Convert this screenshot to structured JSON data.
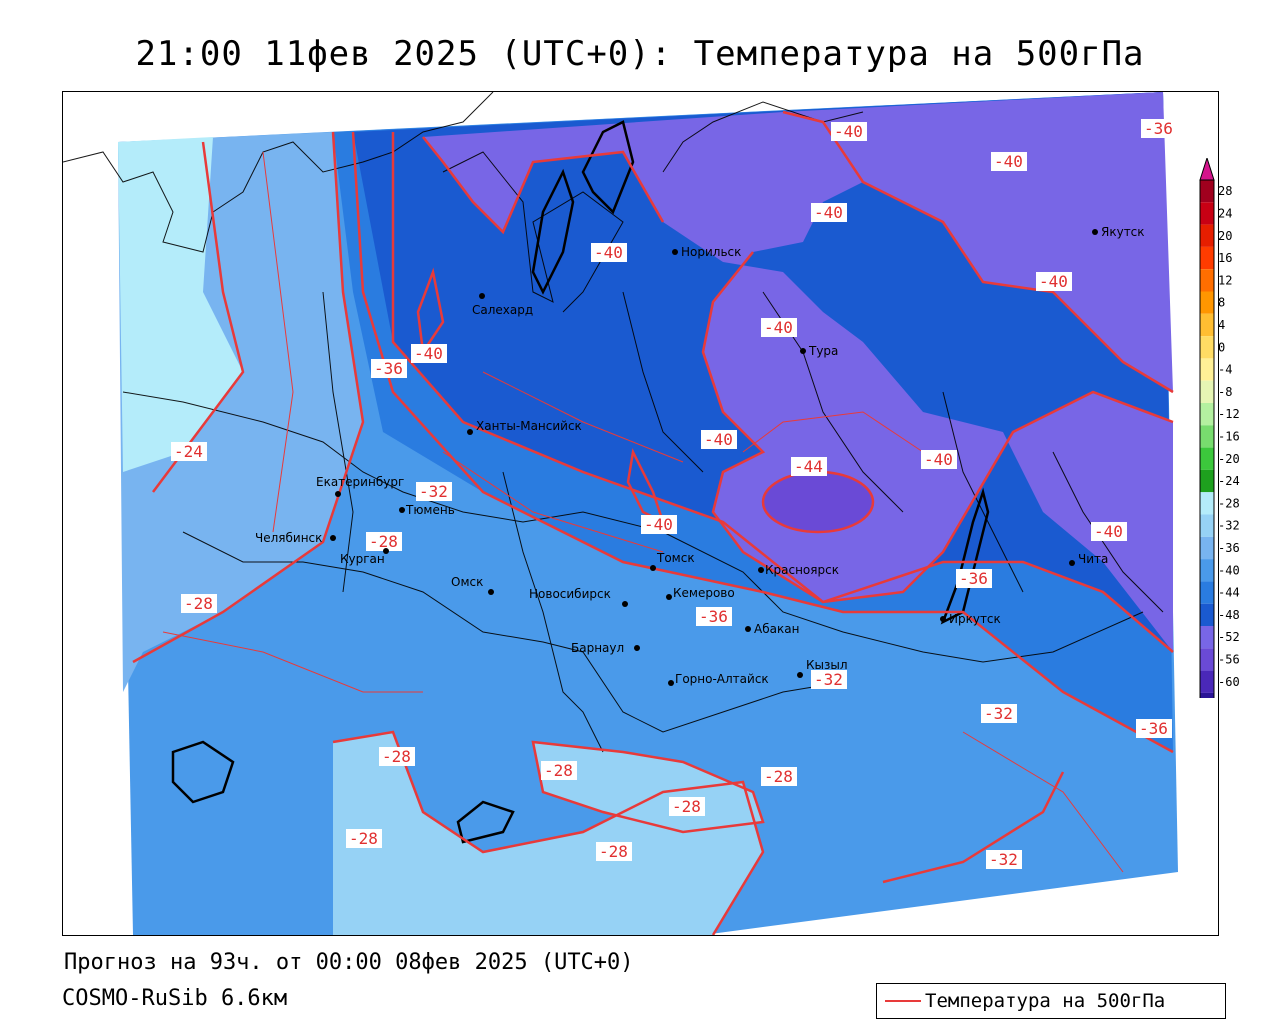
{
  "title": "21:00 11фев 2025 (UTC+0): Температура на 500гПа",
  "footer": {
    "forecast": "Прогноз на 93ч. от 00:00 08фев 2025 (UTC+0)",
    "model": "COSMO-RuSib 6.6км"
  },
  "legend": {
    "label": "Температура на 500гПа",
    "line_color": "#e83a3a"
  },
  "colorbar": {
    "ticks": [
      "28",
      "24",
      "20",
      "16",
      "12",
      "8",
      "4",
      "0",
      "-4",
      "-8",
      "-12",
      "-16",
      "-20",
      "-24",
      "-28",
      "-32",
      "-36",
      "-40",
      "-44",
      "-48",
      "-52",
      "-56",
      "-60"
    ],
    "colors": [
      "#a0001e",
      "#c80014",
      "#e61e00",
      "#ff3c00",
      "#ff6e00",
      "#ff9600",
      "#ffbe32",
      "#ffdc64",
      "#fff096",
      "#e6f5b4",
      "#b4f0a0",
      "#78dc6e",
      "#3cc83c",
      "#1ea01e",
      "#b4ecfa",
      "#96d2f5",
      "#78b4f0",
      "#4a9aea",
      "#2a7ce0",
      "#1a5ad0",
      "#7866e6",
      "#6a4ad6",
      "#4a28b8",
      "#2a1496",
      "#1a0a78"
    ]
  },
  "cities": [
    {
      "id": "norilsk",
      "name": "Норильск"
    },
    {
      "id": "salekhard",
      "name": "Салехард"
    },
    {
      "id": "yakutsk",
      "name": "Якутск"
    },
    {
      "id": "tura",
      "name": "Тура"
    },
    {
      "id": "khanty",
      "name": "Ханты-Мансийск"
    },
    {
      "id": "ekb",
      "name": "Екатеринбург"
    },
    {
      "id": "tyumen",
      "name": "Тюмень"
    },
    {
      "id": "chelyabinsk",
      "name": "Челябинск"
    },
    {
      "id": "kurgan",
      "name": "Курган"
    },
    {
      "id": "omsk",
      "name": "Омск"
    },
    {
      "id": "novosibirsk",
      "name": "Новосибирск"
    },
    {
      "id": "tomsk",
      "name": "Томск"
    },
    {
      "id": "kemerovo",
      "name": "Кемерово"
    },
    {
      "id": "krasnoyarsk",
      "name": "Красноярск"
    },
    {
      "id": "barnaul",
      "name": "Барнаул"
    },
    {
      "id": "abakan",
      "name": "Абакан"
    },
    {
      "id": "gorno",
      "name": "Горно-Алтайск"
    },
    {
      "id": "kyzyl",
      "name": "Кызыл"
    },
    {
      "id": "irkutsk",
      "name": "Иркутск"
    },
    {
      "id": "chita",
      "name": "Чита"
    }
  ],
  "contour_labels": [
    "-40",
    "-36",
    "-40",
    "-40",
    "-40",
    "-40",
    "-40",
    "-36",
    "-40",
    "-40",
    "-24",
    "-44",
    "-40",
    "-32",
    "-28",
    "-40",
    "-40",
    "-36",
    "-28",
    "-36",
    "-32",
    "-32",
    "-36",
    "-28",
    "-28",
    "-28",
    "-28",
    "-28",
    "-28",
    "-32"
  ]
}
